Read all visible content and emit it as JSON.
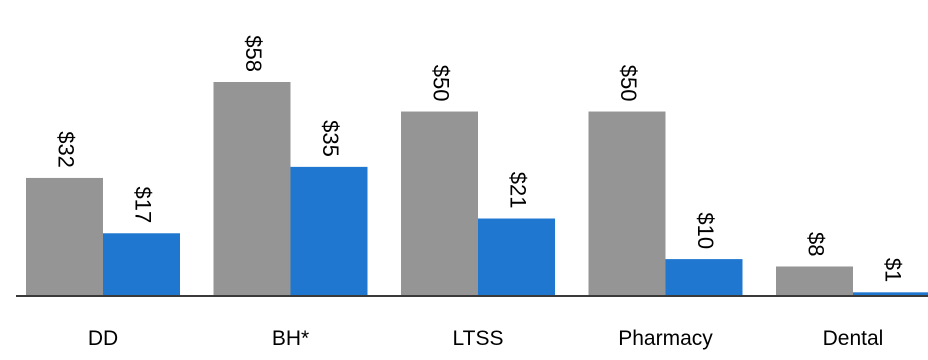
{
  "chart_data": {
    "type": "bar",
    "title": "",
    "xlabel": "",
    "ylabel": "",
    "ylim": [
      0,
      58
    ],
    "grid": false,
    "legend": "none",
    "categories": [
      "DD",
      "BH*",
      "LTSS",
      "Pharmacy",
      "Dental"
    ],
    "series": [
      {
        "values": [
          32,
          58,
          50,
          50,
          8
        ],
        "labels": [
          "$32",
          "$58",
          "$50",
          "$50",
          "$8"
        ],
        "color": "#959595"
      },
      {
        "values": [
          17,
          35,
          21,
          10,
          1
        ],
        "labels": [
          "$17",
          "$35",
          "$21",
          "$10",
          "$1"
        ],
        "color": "#1f77d0"
      }
    ]
  }
}
